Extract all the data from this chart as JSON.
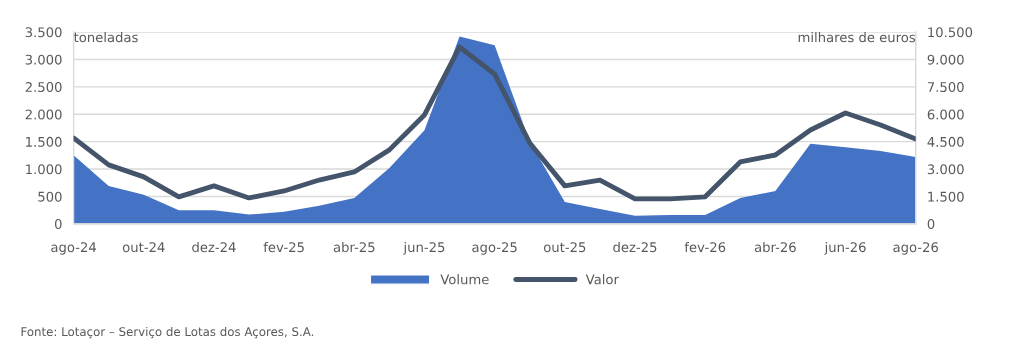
{
  "chart_data": {
    "type": "area",
    "ylabel": "toneladas",
    "y2label": "milhares de euros",
    "categories": [
      "ago-24",
      null,
      "out-24",
      null,
      "dez-24",
      null,
      "fev-25",
      null,
      "abr-25",
      null,
      "jun-25",
      null,
      "ago-25",
      null,
      "out-25",
      null,
      "dez-25",
      null,
      "fev-26",
      null,
      "abr-26",
      null,
      "jun-26",
      null,
      "ago-26"
    ],
    "series": [
      {
        "name": "Volume",
        "color": "#4472c4",
        "values": [
          1250,
          690,
          530,
          250,
          250,
          170,
          220,
          330,
          470,
          1020,
          1710,
          3420,
          3260,
          1500,
          400,
          270,
          150,
          160,
          160,
          470,
          600,
          1460,
          1400,
          1330,
          1220
        ]
      },
      {
        "name": "Valor",
        "type": "line",
        "axis": "y2",
        "color": "#44546a",
        "values": [
          4700,
          3230,
          2570,
          1480,
          2080,
          1420,
          1800,
          2400,
          2840,
          4050,
          5960,
          9680,
          8200,
          4430,
          2080,
          2400,
          1370,
          1370,
          1480,
          3390,
          3770,
          5140,
          6070,
          5410,
          4650
        ]
      }
    ],
    "ylim": [
      0,
      3500
    ],
    "yticks": [
      0,
      500,
      {
        "value": 1000,
        "label": "1.000"
      },
      {
        "value": 1500,
        "label": "1.500"
      },
      {
        "value": 2000,
        "label": "2.000"
      },
      {
        "value": 2500,
        "label": "2.500"
      },
      {
        "value": 3000,
        "label": "3.000"
      },
      {
        "value": 3500,
        "label": "3.500"
      }
    ],
    "y2lim": [
      0,
      10500
    ],
    "y2ticks": [
      0,
      {
        "value": 1500,
        "label": "1.500"
      },
      {
        "value": 3000,
        "label": "3.000"
      },
      {
        "value": 4500,
        "label": "4.500"
      },
      {
        "value": 6000,
        "label": "6.000"
      },
      {
        "value": 7500,
        "label": "7.500"
      },
      {
        "value": 9000,
        "label": "9.000"
      },
      {
        "value": 10500,
        "label": "10.500"
      }
    ],
    "grid": "y",
    "legend": "bottom",
    "marker": "none",
    "line_style": "solid",
    "annotations": [
      "Fonte: Lotaçor – Serviço de Lotas dos Açores, S.A."
    ]
  }
}
